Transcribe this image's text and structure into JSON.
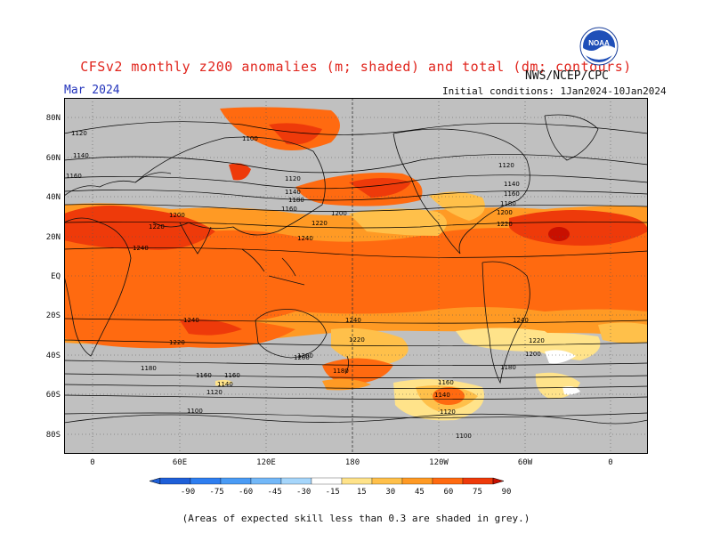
{
  "header": {
    "title": "CFSv2 monthly z200 anomalies (m; shaded) and total (dm; contours)",
    "month": "Mar 2024",
    "agency": "NWS/NCEP/CPC",
    "initial_conditions": "Initial conditions: 1Jan2024-10Jan2024",
    "logo_text": "NOAA"
  },
  "map": {
    "projection": "cylindrical equidistant, centered 180",
    "lat_labels": [
      "80N",
      "60N",
      "40N",
      "20N",
      "EQ",
      "20S",
      "40S",
      "60S",
      "80S"
    ],
    "lon_labels": [
      "0",
      "60E",
      "120E",
      "180",
      "120W",
      "60W",
      "0"
    ],
    "background_color": "#c0c0c0",
    "contour_labels": [
      "1120",
      "1100",
      "1140",
      "1160",
      "1120",
      "1140",
      "1160",
      "1180",
      "1200",
      "1220",
      "1240",
      "1220",
      "1200",
      "1120",
      "1140",
      "1160",
      "1180",
      "1200",
      "1220",
      "1240",
      "1240",
      "1240",
      "1240",
      "1220",
      "1200",
      "1180",
      "1160",
      "1140",
      "1120",
      "1100",
      "1220",
      "1200",
      "1180",
      "1160",
      "1140",
      "1120",
      "1100",
      "1180",
      "1160",
      "1200",
      "1220"
    ]
  },
  "colorbar": {
    "labels": [
      "-90",
      "-75",
      "-60",
      "-45",
      "-30",
      "-15",
      "15",
      "30",
      "45",
      "60",
      "75",
      "90"
    ],
    "colors": [
      "#1e5fd8",
      "#2e7ef0",
      "#4a9bf5",
      "#73b8f8",
      "#a6d6fb",
      "#ffffff",
      "#ffe38a",
      "#ffc04a",
      "#ff9a24",
      "#ff6a10",
      "#ee3a0a",
      "#c81000"
    ]
  },
  "footer": {
    "note": "(Areas of expected skill less than 0.3 are shaded in grey.)"
  }
}
